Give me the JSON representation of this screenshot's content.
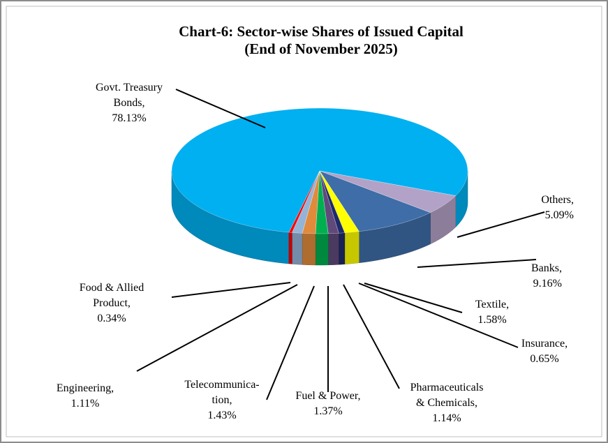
{
  "chart_data": {
    "type": "pie3d",
    "title": "Chart-6: Sector-wise Shares of Issued Capital\n(End of  November 2025)",
    "categories": [
      "Govt. Treasury\nBonds,",
      "Others,",
      "Banks,",
      "Textile,",
      "Insurance,",
      "Pharmaceuticals\n& Chemicals,",
      "Fuel & Power,",
      "Telecommunica-\ntion,",
      "Engineering,",
      "Food & Allied\nProduct,"
    ],
    "values": [
      78.13,
      5.09,
      9.16,
      1.58,
      0.65,
      1.14,
      1.37,
      1.43,
      1.11,
      0.34
    ],
    "value_labels": [
      "78.13%",
      "5.09%",
      "9.16%",
      "1.58%",
      "0.65%",
      "1.14%",
      "1.37%",
      "1.43%",
      "1.11%",
      "0.34%"
    ],
    "colors": [
      "#00b0f0",
      "#b3a2c7",
      "#3e6da8",
      "#ffff00",
      "#1f2a6b",
      "#604a7b",
      "#00b050",
      "#e08a3c",
      "#95b3d7",
      "#ff0000"
    ]
  }
}
